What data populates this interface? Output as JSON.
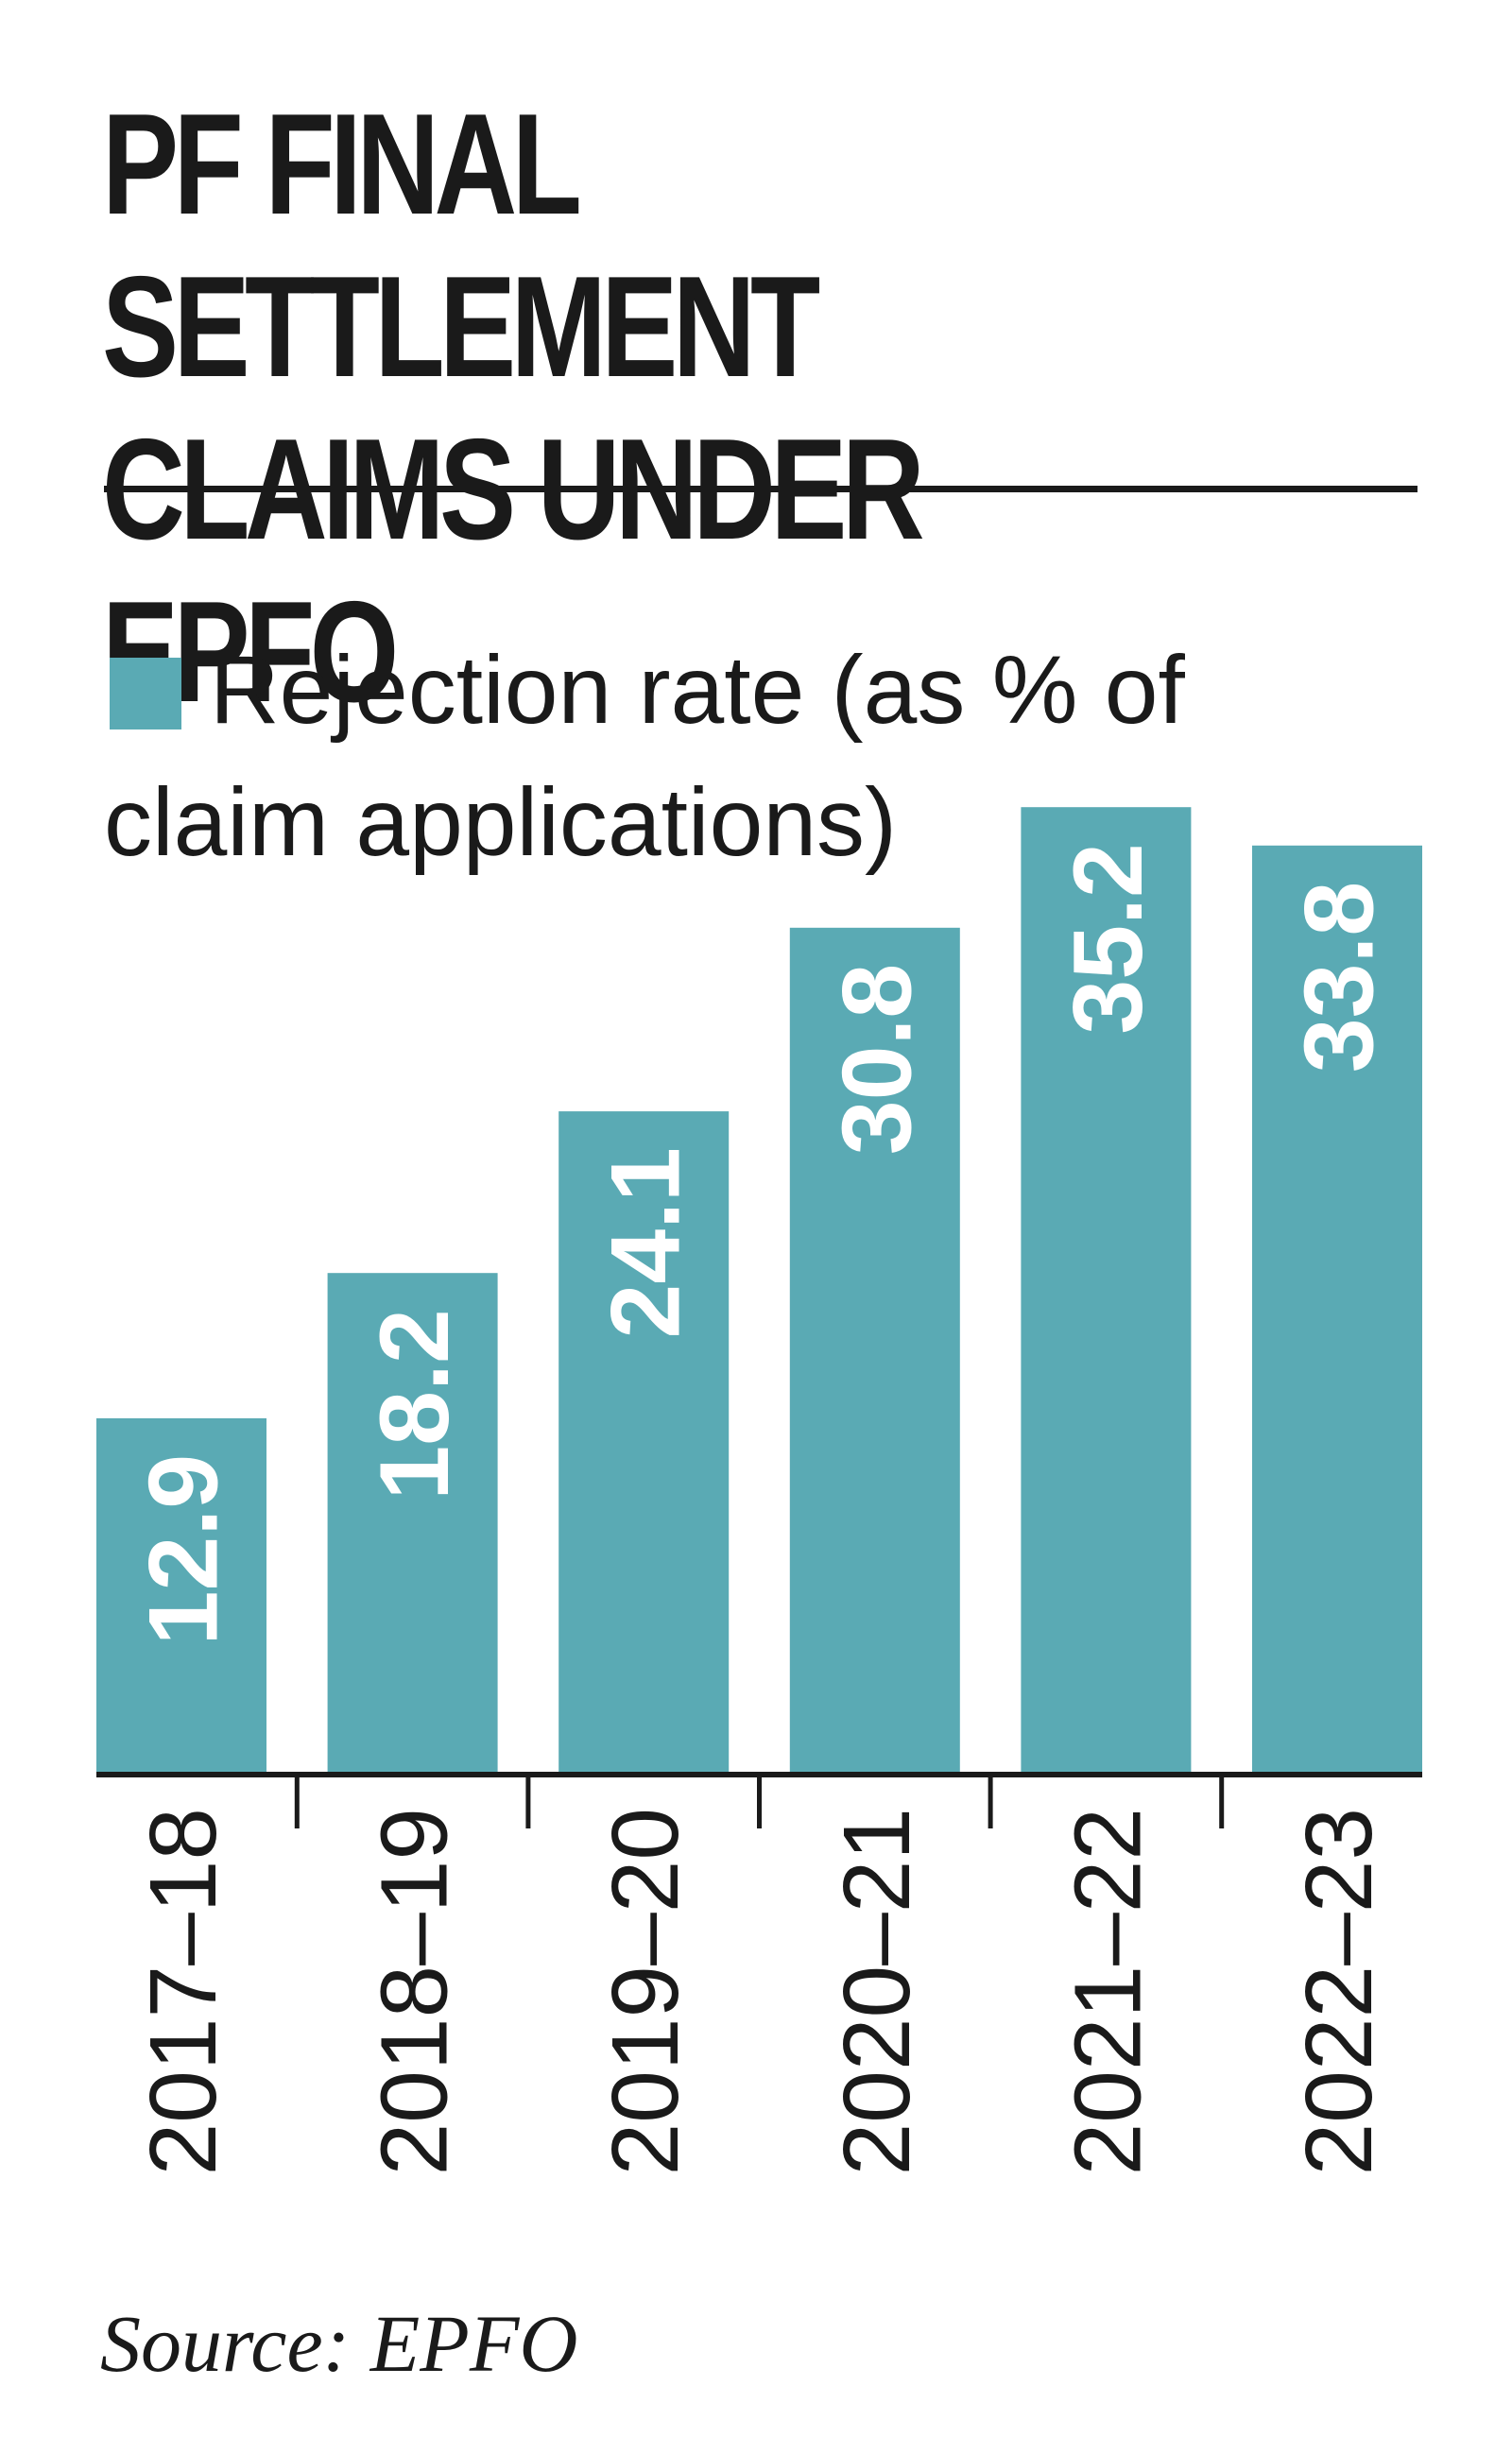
{
  "title": "PF FINAL SETTLEMENT CLAIMS UNDER EPFO",
  "legend": {
    "label": "Rejection rate (as % of claim applications)"
  },
  "source": "Source: EPFO",
  "colors": {
    "bar": "#5aaab4",
    "bar_label": "#ffffff",
    "text": "#1a1a1a"
  },
  "chart_data": {
    "type": "bar",
    "title": "PF FINAL SETTLEMENT CLAIMS UNDER EPFO",
    "xlabel": "",
    "ylabel": "",
    "categories": [
      "2017-18",
      "2018-19",
      "2019-20",
      "2020-21",
      "2021-22",
      "2022-23"
    ],
    "series": [
      {
        "name": "Rejection rate (as % of claim applications)",
        "values": [
          12.9,
          18.2,
          24.1,
          30.8,
          35.2,
          33.8
        ]
      }
    ],
    "ylim": [
      0,
      36
    ],
    "grid": false,
    "legend_position": "top-left",
    "value_labels": "inside-bar-vertical",
    "category_labels": "vertical"
  }
}
